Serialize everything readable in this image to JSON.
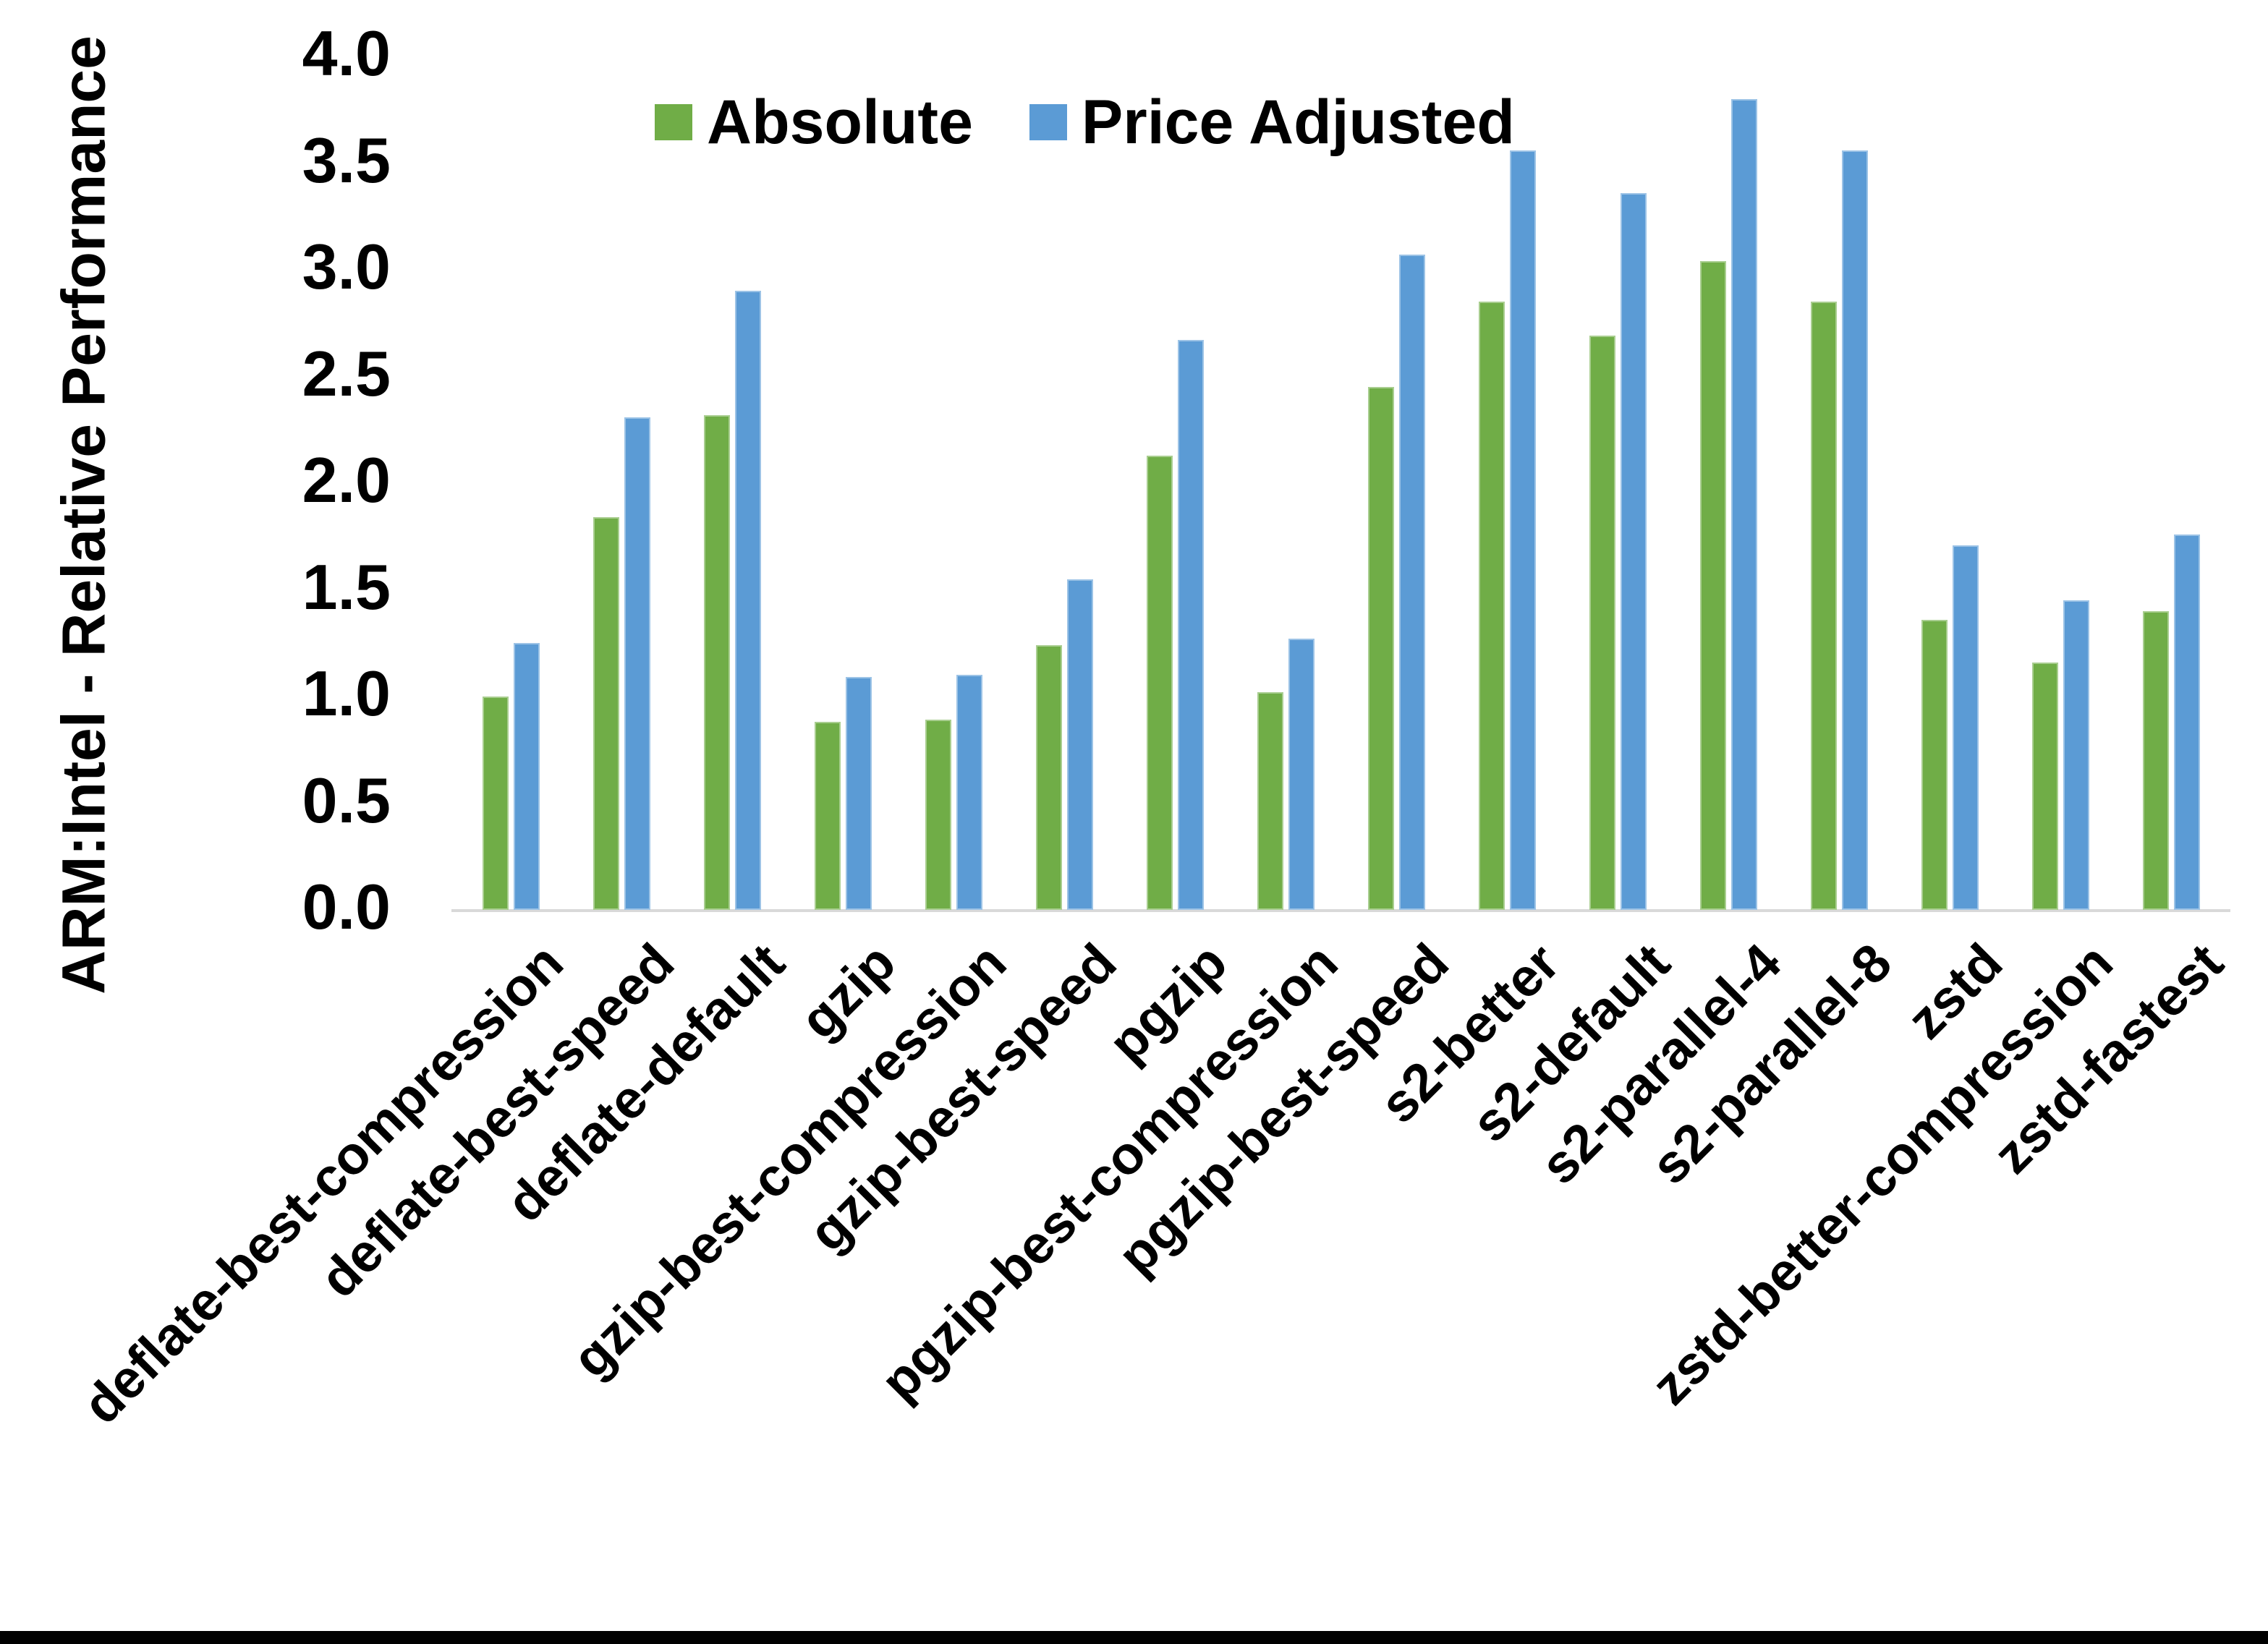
{
  "chart_data": {
    "type": "bar",
    "title": "",
    "xlabel": "",
    "ylabel": "ARM:Intel - Relative Performance",
    "ylim": [
      0.0,
      4.0
    ],
    "ytick_step": 0.5,
    "grid": false,
    "legend_position": "top-center",
    "categories": [
      "deflate-best-compression",
      "deflate-best-speed",
      "deflate-default",
      "gzip",
      "gzip-best-compression",
      "gzip-best-speed",
      "pgzip",
      "pgzip-best-compression",
      "pgzip-best-speed",
      "s2-better",
      "s2-default",
      "s2-parallel-4",
      "s2-parallel-8",
      "zstd",
      "zstd-better-compression",
      "zstd-fastest"
    ],
    "series": [
      {
        "name": "Absolute",
        "color": "#70AD47",
        "values": [
          1.0,
          1.84,
          2.32,
          0.88,
          0.89,
          1.24,
          2.13,
          1.02,
          2.45,
          2.85,
          2.69,
          3.04,
          2.85,
          1.36,
          1.16,
          1.4
        ]
      },
      {
        "name": "Price Adjusted",
        "color": "#5B9BD5",
        "values": [
          1.25,
          2.31,
          2.9,
          1.09,
          1.1,
          1.55,
          2.67,
          1.27,
          3.07,
          3.56,
          3.36,
          3.8,
          3.56,
          1.71,
          1.45,
          1.76
        ]
      }
    ],
    "axis_line_color": "#d9d9d9",
    "y_tick_labels": [
      "0.0",
      "0.5",
      "1.0",
      "1.5",
      "2.0",
      "2.5",
      "3.0",
      "3.5",
      "4.0"
    ]
  }
}
